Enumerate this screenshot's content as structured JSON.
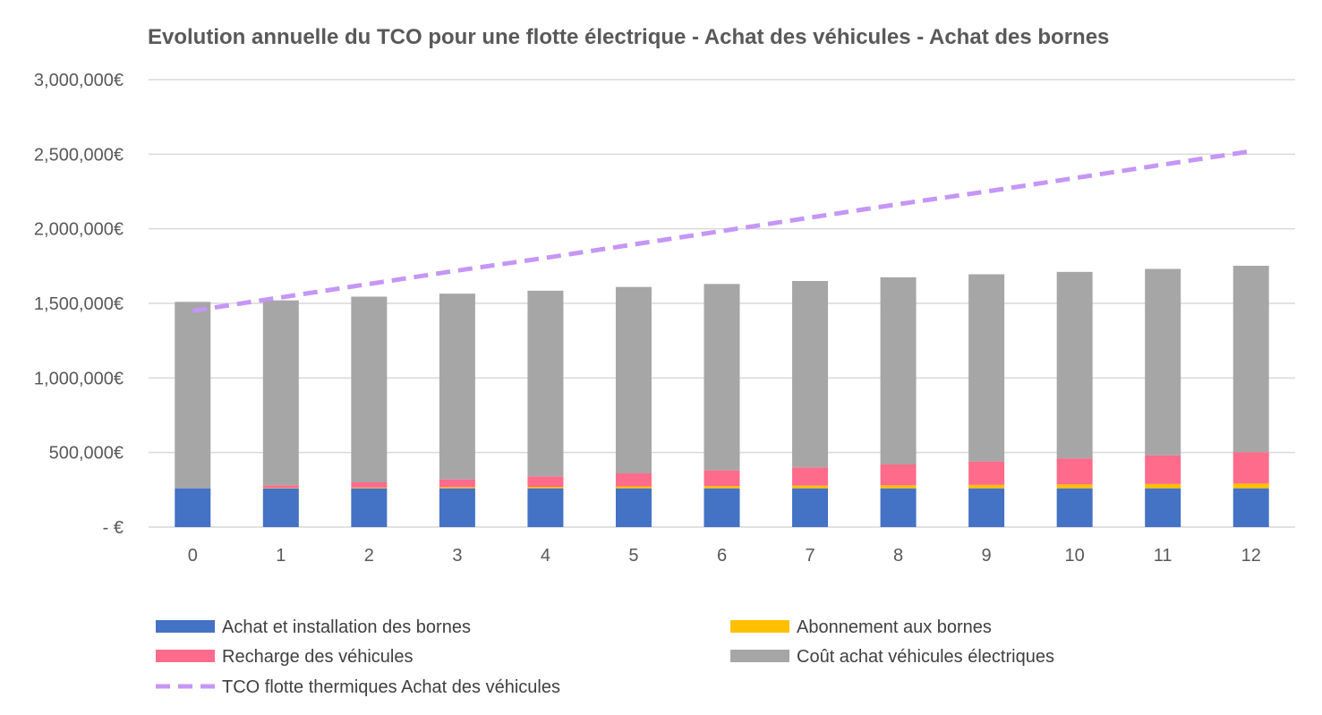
{
  "chart_data": {
    "type": "bar",
    "stacked": true,
    "title": "Evolution annuelle du TCO  pour une flotte électrique - Achat des véhicules - Achat des bornes",
    "categories": [
      "0",
      "1",
      "2",
      "3",
      "4",
      "5",
      "6",
      "7",
      "8",
      "9",
      "10",
      "11",
      "12"
    ],
    "y_ticks": [
      "3,000,000€",
      "2,500,000€",
      "2,000,000€",
      "1,500,000€",
      "1,000,000€",
      "500,000€",
      "-  €"
    ],
    "ylim": [
      0,
      3000000
    ],
    "grid": true,
    "legend_position": "bottom",
    "series": [
      {
        "name": "Achat et installation des bornes",
        "type": "bar",
        "color": "#4472c4",
        "values": [
          260000,
          260000,
          260000,
          260000,
          260000,
          260000,
          260000,
          260000,
          260000,
          260000,
          260000,
          260000,
          260000
        ]
      },
      {
        "name": "Abonnement aux bornes",
        "type": "bar",
        "color": "#ffc000",
        "values": [
          0,
          3000,
          5000,
          8000,
          10000,
          13000,
          15000,
          18000,
          20000,
          23000,
          26000,
          29000,
          32000
        ]
      },
      {
        "name": "Recharge des véhicules",
        "type": "bar",
        "color": "#ff6b8a",
        "values": [
          0,
          17000,
          35000,
          52000,
          70000,
          87000,
          105000,
          122000,
          140000,
          157000,
          175000,
          192000,
          210000
        ]
      },
      {
        "name": "Coût achat véhicules électriques",
        "type": "bar",
        "color": "#a6a6a6",
        "values": [
          1250000,
          1240000,
          1245000,
          1245000,
          1245000,
          1250000,
          1250000,
          1250000,
          1255000,
          1255000,
          1250000,
          1250000,
          1250000
        ]
      },
      {
        "name": "TCO flotte thermiques Achat des véhicules",
        "type": "line",
        "style": "dashed",
        "color": "#c596f6",
        "values": [
          1450000,
          1540000,
          1630000,
          1720000,
          1805000,
          1895000,
          1985000,
          2075000,
          2165000,
          2250000,
          2340000,
          2430000,
          2520000
        ]
      }
    ]
  }
}
